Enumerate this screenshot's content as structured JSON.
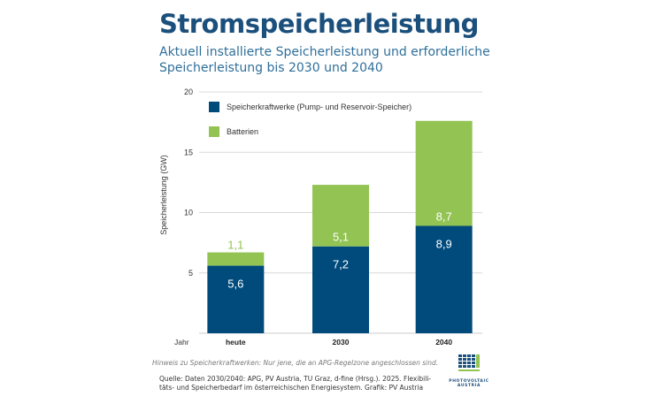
{
  "chart_data": {
    "type": "bar",
    "stacked": true,
    "title": "Stromspeicherleistung",
    "subtitle": "Aktuell installierte Speicherleistung und erforderliche Speicherleistung bis 2030 und 2040",
    "xlabel": "Jahr",
    "ylabel": "Speicherleistung (GW)",
    "ylim": [
      0,
      20
    ],
    "yticks": [
      5,
      10,
      15,
      20
    ],
    "categories": [
      "heute",
      "2030",
      "2040"
    ],
    "series": [
      {
        "name": "Speicherkraftwerke (Pump- und Reservoir-Speicher)",
        "color": "#004b7c",
        "values": [
          5.6,
          7.2,
          8.9
        ],
        "labels": [
          "5,6",
          "7,2",
          "8,9"
        ]
      },
      {
        "name": "Batterien",
        "color": "#92c353",
        "values": [
          1.1,
          5.1,
          8.7
        ],
        "labels": [
          "1,1",
          "5,1",
          "8,7"
        ]
      }
    ],
    "legend_position": "top-left",
    "grid": true
  },
  "footer": {
    "note": "Hinweis zu Speicherkraftwerken: Nur jene, die an APG-Regelzone angeschlossen sind.",
    "source": "Quelle: Daten 2030/2040: APG, PV Austria, TU Graz, d-fine (Hrsg.). 2025. Flexibili-täts- und Speicherbedarf im österreichischen Energiesystem. Grafik: PV Austria"
  },
  "logo": {
    "line1": "PHOTOVOLTAIC",
    "line2": "AUSTRIA"
  }
}
